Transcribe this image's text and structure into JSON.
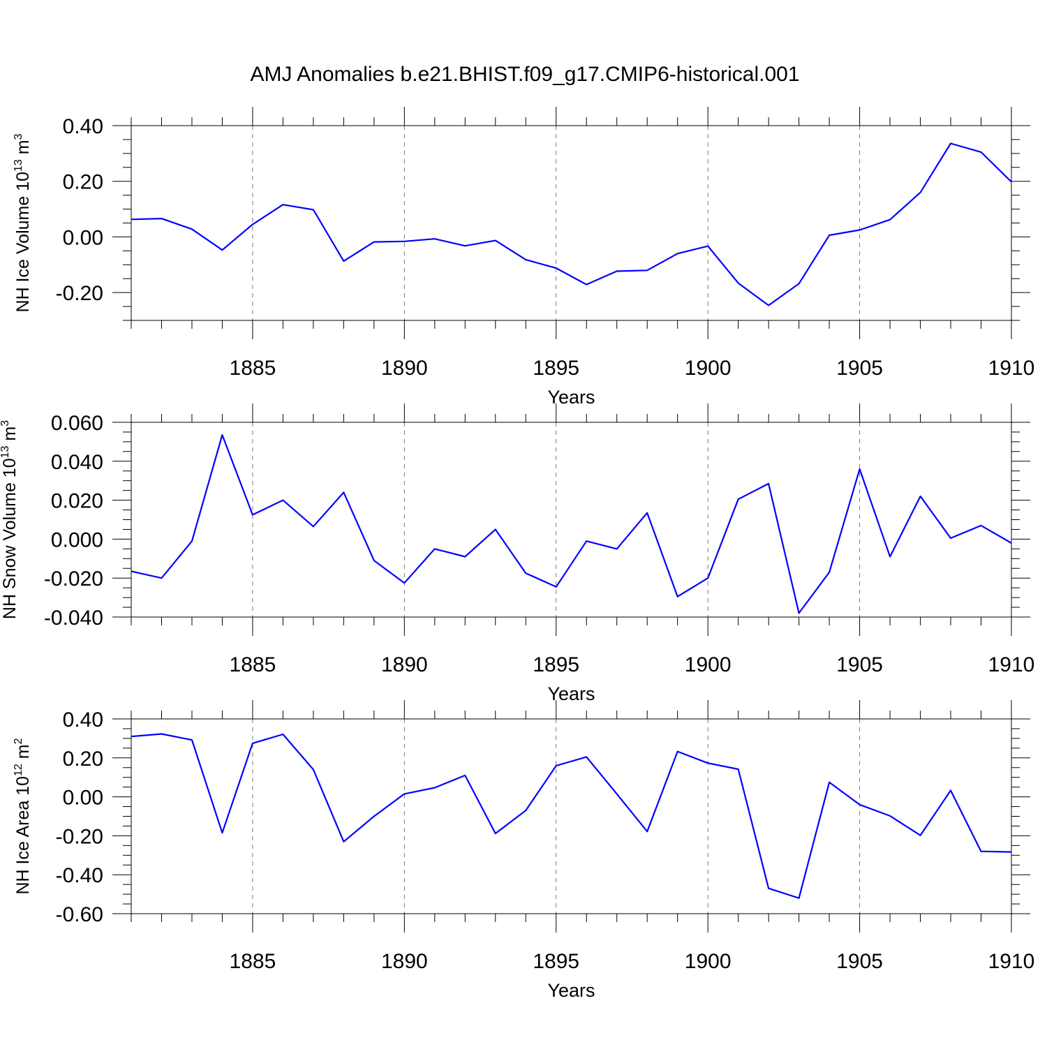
{
  "title": "AMJ Anomalies b.e21.BHIST.f09_g17.CMIP6-historical.001",
  "chart_data": [
    {
      "type": "line",
      "ylabel": "NH Ice Volume 10",
      "ylabel_exp": "13",
      "ylabel_unit": "m",
      "ylabel_unit_exp": "3",
      "xlabel": "Years",
      "xlim": [
        1881,
        1910
      ],
      "ylim": [
        -0.3,
        0.4
      ],
      "yticks": [
        -0.2,
        0.0,
        0.2,
        0.4
      ],
      "ytick_labels": [
        "-0.20",
        "0.00",
        "0.20",
        "0.40"
      ],
      "yminor": [
        -0.3,
        -0.25,
        -0.15,
        -0.1,
        -0.05,
        0.05,
        0.1,
        0.15,
        0.25,
        0.3,
        0.35
      ],
      "xticks": [
        1885,
        1890,
        1895,
        1900,
        1905,
        1910
      ],
      "xtick_labels": [
        "1885",
        "1890",
        "1895",
        "1900",
        "1905",
        "1910"
      ],
      "series": [
        {
          "name": "NH Ice Volume",
          "x": [
            1881,
            1882,
            1883,
            1884,
            1885,
            1886,
            1887,
            1888,
            1889,
            1890,
            1891,
            1892,
            1893,
            1894,
            1895,
            1896,
            1897,
            1898,
            1899,
            1900,
            1901,
            1902,
            1903,
            1904,
            1905,
            1906,
            1907,
            1908,
            1909,
            1910
          ],
          "values": [
            0.063,
            0.066,
            0.028,
            -0.047,
            0.045,
            0.116,
            0.098,
            -0.087,
            -0.018,
            -0.016,
            -0.007,
            -0.032,
            -0.013,
            -0.082,
            -0.112,
            -0.171,
            -0.123,
            -0.12,
            -0.06,
            -0.033,
            -0.166,
            -0.246,
            -0.168,
            0.006,
            0.025,
            0.062,
            0.16,
            0.336,
            0.305,
            0.198
          ]
        }
      ]
    },
    {
      "type": "line",
      "ylabel": "NH Snow Volume 10",
      "ylabel_exp": "13",
      "ylabel_unit": "m",
      "ylabel_unit_exp": "3",
      "xlabel": "Years",
      "xlim": [
        1881,
        1910
      ],
      "ylim": [
        -0.04,
        0.06
      ],
      "yticks": [
        -0.04,
        -0.02,
        0.0,
        0.02,
        0.04,
        0.06
      ],
      "ytick_labels": [
        "-0.040",
        "-0.020",
        "0.000",
        "0.020",
        "0.040",
        "0.060"
      ],
      "yminor": [
        -0.035,
        -0.03,
        -0.025,
        -0.015,
        -0.01,
        -0.005,
        0.005,
        0.01,
        0.015,
        0.025,
        0.03,
        0.035,
        0.045,
        0.05,
        0.055
      ],
      "xticks": [
        1885,
        1890,
        1895,
        1900,
        1905,
        1910
      ],
      "xtick_labels": [
        "1885",
        "1890",
        "1895",
        "1900",
        "1905",
        "1910"
      ],
      "series": [
        {
          "name": "NH Snow Volume",
          "x": [
            1881,
            1882,
            1883,
            1884,
            1885,
            1886,
            1887,
            1888,
            1889,
            1890,
            1891,
            1892,
            1893,
            1894,
            1895,
            1896,
            1897,
            1898,
            1899,
            1900,
            1901,
            1902,
            1903,
            1904,
            1905,
            1906,
            1907,
            1908,
            1909,
            1910
          ],
          "values": [
            -0.0165,
            -0.02,
            -0.001,
            0.0535,
            0.0125,
            0.02,
            0.0065,
            0.024,
            -0.011,
            -0.0225,
            -0.005,
            -0.009,
            0.005,
            -0.0175,
            -0.0245,
            -0.001,
            -0.005,
            0.0135,
            -0.0295,
            -0.02,
            0.0205,
            0.0285,
            -0.038,
            -0.017,
            0.036,
            -0.009,
            0.022,
            0.0005,
            0.007,
            -0.002
          ]
        }
      ]
    },
    {
      "type": "line",
      "ylabel": "NH Ice Area 10",
      "ylabel_exp": "12",
      "ylabel_unit": "m",
      "ylabel_unit_exp": "2",
      "xlabel": "Years",
      "xlim": [
        1881,
        1910
      ],
      "ylim": [
        -0.6,
        0.4
      ],
      "yticks": [
        -0.6,
        -0.4,
        -0.2,
        0.0,
        0.2,
        0.4
      ],
      "ytick_labels": [
        "-0.60",
        "-0.40",
        "-0.20",
        "0.00",
        "0.20",
        "0.40"
      ],
      "yminor": [
        -0.55,
        -0.5,
        -0.45,
        -0.35,
        -0.3,
        -0.25,
        -0.15,
        -0.1,
        -0.05,
        0.05,
        0.1,
        0.15,
        0.25,
        0.3,
        0.35
      ],
      "xticks": [
        1885,
        1890,
        1895,
        1900,
        1905,
        1910
      ],
      "xtick_labels": [
        "1885",
        "1890",
        "1895",
        "1900",
        "1905",
        "1910"
      ],
      "series": [
        {
          "name": "NH Ice Area",
          "x": [
            1881,
            1882,
            1883,
            1884,
            1885,
            1886,
            1887,
            1888,
            1889,
            1890,
            1891,
            1892,
            1893,
            1894,
            1895,
            1896,
            1897,
            1898,
            1899,
            1900,
            1901,
            1902,
            1903,
            1904,
            1905,
            1906,
            1907,
            1908,
            1909,
            1910
          ],
          "values": [
            0.31,
            0.323,
            0.292,
            -0.185,
            0.275,
            0.321,
            0.14,
            -0.23,
            -0.1,
            0.015,
            0.047,
            0.11,
            -0.188,
            -0.07,
            0.16,
            0.205,
            0.015,
            -0.178,
            0.233,
            0.173,
            0.142,
            -0.47,
            -0.52,
            0.075,
            -0.04,
            -0.098,
            -0.198,
            0.033,
            -0.28,
            -0.283
          ]
        }
      ]
    }
  ]
}
